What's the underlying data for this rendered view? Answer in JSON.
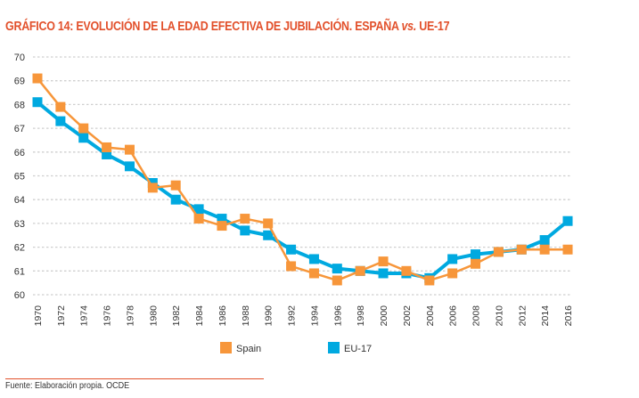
{
  "chart_data": {
    "type": "line",
    "title_main": "GRÁFICO 14: EVOLUCIÓN DE LA EDAD EFECTIVA DE JUBILACIÓN. ESPAÑA ",
    "title_vs": "vs.",
    "title_end": " UE-17",
    "x": [
      1970,
      1972,
      1974,
      1976,
      1978,
      1980,
      1982,
      1984,
      1986,
      1988,
      1990,
      1992,
      1994,
      1996,
      1998,
      2000,
      2002,
      2004,
      2006,
      2008,
      2010,
      2012,
      2014,
      2016
    ],
    "ylim": [
      60,
      70
    ],
    "yticks": [
      60,
      61,
      62,
      63,
      64,
      65,
      66,
      67,
      68,
      69,
      70
    ],
    "grid": true,
    "legend_position": "bottom",
    "series": [
      {
        "name": "Spain",
        "color": "#F7963A",
        "marker": "square",
        "values": [
          69.1,
          67.9,
          67.0,
          66.2,
          66.1,
          64.5,
          64.6,
          63.2,
          62.9,
          63.2,
          63.0,
          61.2,
          60.9,
          60.6,
          61.0,
          61.4,
          61.0,
          60.6,
          60.9,
          61.3,
          61.8,
          61.9,
          61.9,
          61.9
        ]
      },
      {
        "name": "EU-17",
        "color": "#00A9E0",
        "marker": "square",
        "values": [
          68.1,
          67.3,
          66.6,
          65.9,
          65.4,
          64.7,
          64.0,
          63.6,
          63.2,
          62.7,
          62.5,
          61.9,
          61.5,
          61.1,
          61.0,
          60.9,
          60.9,
          60.7,
          61.5,
          61.7,
          61.8,
          61.9,
          62.3,
          63.1
        ]
      }
    ]
  },
  "footer": "Fuente: Elaboración propia. OCDE"
}
